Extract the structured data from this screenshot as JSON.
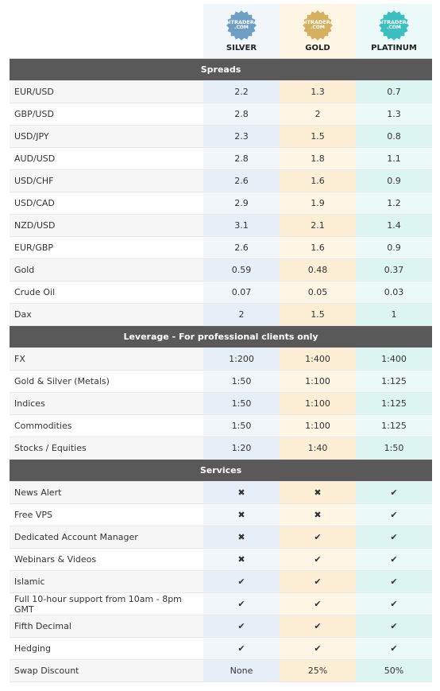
{
  "tiers": [
    {
      "badge": [
        "ITRADER",
        ".COM"
      ],
      "name": "SILVER"
    },
    {
      "badge": [
        "ITRADER",
        ".COM"
      ],
      "name": "GOLD"
    },
    {
      "badge": [
        "ITRADER",
        ".COM"
      ],
      "name": "PLATINUM"
    }
  ],
  "sections": [
    {
      "title": "Spreads",
      "rows": [
        [
          "EUR/USD",
          "2.2",
          "1.3",
          "0.7"
        ],
        [
          "GBP/USD",
          "2.8",
          "2",
          "1.3"
        ],
        [
          "USD/JPY",
          "2.3",
          "1.5",
          "0.8"
        ],
        [
          "AUD/USD",
          "2.8",
          "1.8",
          "1.1"
        ],
        [
          "USD/CHF",
          "2.6",
          "1.6",
          "0.9"
        ],
        [
          "USD/CAD",
          "2.9",
          "1.9",
          "1.2"
        ],
        [
          "NZD/USD",
          "3.1",
          "2.1",
          "1.4"
        ],
        [
          "EUR/GBP",
          "2.6",
          "1.6",
          "0.9"
        ],
        [
          "Gold",
          "0.59",
          "0.48",
          "0.37"
        ],
        [
          "Crude Oil",
          "0.07",
          "0.05",
          "0.03"
        ],
        [
          "Dax",
          "2",
          "1.5",
          "1"
        ]
      ]
    },
    {
      "title": "Leverage - For professional clients only",
      "rows": [
        [
          "FX",
          "1:200",
          "1:400",
          "1:400"
        ],
        [
          "Gold & Silver (Metals)",
          "1:50",
          "1:100",
          "1:125"
        ],
        [
          "Indices",
          "1:50",
          "1:100",
          "1:125"
        ],
        [
          "Commodities",
          "1:50",
          "1:100",
          "1:125"
        ],
        [
          "Stocks / Equities",
          "1:20",
          "1:40",
          "1:50"
        ]
      ]
    },
    {
      "title": "Services",
      "rows": [
        [
          "News Alert",
          "✖",
          "✖",
          "✔"
        ],
        [
          "Free VPS",
          "✖",
          "✖",
          "✔"
        ],
        [
          "Dedicated Account Manager",
          "✖",
          "✔",
          "✔"
        ],
        [
          "Webinars & Videos",
          "✖",
          "✔",
          "✔"
        ],
        [
          "Islamic",
          "✔",
          "✔",
          "✔"
        ],
        [
          "Full 10-hour support from 10am - 8pm GMT",
          "✔",
          "✔",
          "✔"
        ],
        [
          "Fifth Decimal",
          "✔",
          "✔",
          "✔"
        ],
        [
          "Hedging",
          "✔",
          "✔",
          "✔"
        ],
        [
          "Swap Discount",
          "None",
          "25%",
          "50%"
        ]
      ]
    }
  ]
}
